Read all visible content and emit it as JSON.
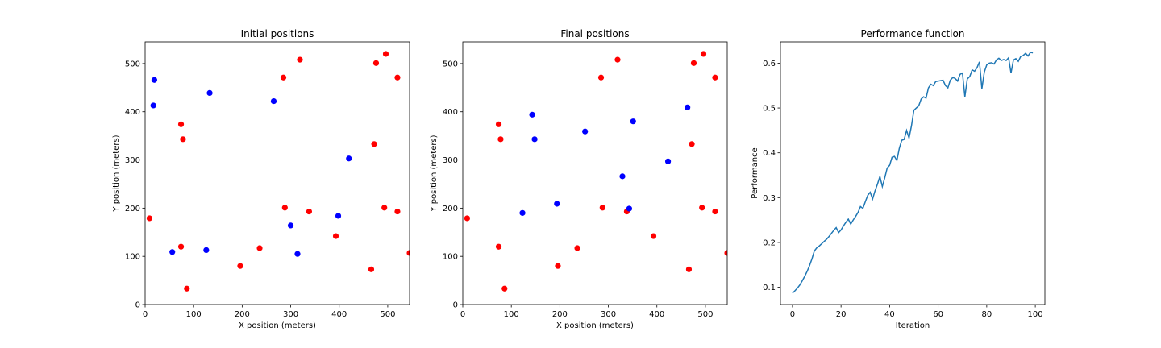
{
  "chart_data": [
    {
      "type": "scatter",
      "title": "Initial positions",
      "xlabel": "X position (meters)",
      "ylabel": "Y position (meters)",
      "xlim": [
        0,
        545
      ],
      "ylim": [
        0,
        545
      ],
      "xticks": [
        0,
        100,
        200,
        300,
        400,
        500
      ],
      "yticks": [
        0,
        100,
        200,
        300,
        400,
        500
      ],
      "grid": false,
      "series": [
        {
          "color": "#ff0000",
          "points": [
            [
              9,
              179
            ],
            [
              74,
              374
            ],
            [
              78,
              343
            ],
            [
              74,
              120
            ],
            [
              86,
              33
            ],
            [
              196,
              80
            ],
            [
              236,
              117
            ],
            [
              285,
              471
            ],
            [
              288,
              201
            ],
            [
              319,
              508
            ],
            [
              338,
              193
            ],
            [
              393,
              142
            ],
            [
              466,
              73
            ],
            [
              472,
              333
            ],
            [
              476,
              501
            ],
            [
              493,
              201
            ],
            [
              496,
              520
            ],
            [
              520,
              471
            ],
            [
              520,
              193
            ],
            [
              545,
              107
            ]
          ]
        },
        {
          "color": "#0000ff",
          "points": [
            [
              19,
              466
            ],
            [
              17,
              413
            ],
            [
              133,
              439
            ],
            [
              265,
              422
            ],
            [
              420,
              303
            ],
            [
              300,
              164
            ],
            [
              398,
              184
            ],
            [
              56,
              109
            ],
            [
              126,
              113
            ],
            [
              314,
              105
            ]
          ]
        }
      ]
    },
    {
      "type": "scatter",
      "title": "Final positions",
      "xlabel": "X position (meters)",
      "ylabel": "Y position (meters)",
      "xlim": [
        0,
        545
      ],
      "ylim": [
        0,
        545
      ],
      "xticks": [
        0,
        100,
        200,
        300,
        400,
        500
      ],
      "yticks": [
        0,
        100,
        200,
        300,
        400,
        500
      ],
      "grid": false,
      "series": [
        {
          "color": "#ff0000",
          "points": [
            [
              9,
              179
            ],
            [
              74,
              374
            ],
            [
              78,
              343
            ],
            [
              74,
              120
            ],
            [
              86,
              33
            ],
            [
              196,
              80
            ],
            [
              236,
              117
            ],
            [
              285,
              471
            ],
            [
              288,
              201
            ],
            [
              319,
              508
            ],
            [
              338,
              193
            ],
            [
              393,
              142
            ],
            [
              466,
              73
            ],
            [
              472,
              333
            ],
            [
              476,
              501
            ],
            [
              493,
              201
            ],
            [
              496,
              520
            ],
            [
              520,
              471
            ],
            [
              520,
              193
            ],
            [
              545,
              107
            ]
          ]
        },
        {
          "color": "#0000ff",
          "points": [
            [
              143,
              394
            ],
            [
              148,
              343
            ],
            [
              252,
              359
            ],
            [
              351,
              380
            ],
            [
              463,
              409
            ],
            [
              423,
              297
            ],
            [
              329,
              266
            ],
            [
              343,
              199
            ],
            [
              194,
              209
            ],
            [
              123,
              190
            ]
          ]
        }
      ]
    },
    {
      "type": "line",
      "title": "Performance function",
      "xlabel": "Iteration",
      "ylabel": "Performance",
      "xlim": [
        -4.95,
        103.95
      ],
      "ylim": [
        0.0615,
        0.6475
      ],
      "xticks": [
        0,
        20,
        40,
        60,
        80,
        100
      ],
      "yticks": [
        0.1,
        0.2,
        0.3,
        0.4,
        0.5,
        0.6
      ],
      "grid": false,
      "series": [
        {
          "color": "#1f77b4",
          "x": [
            0,
            1,
            2,
            3,
            4,
            5,
            6,
            7,
            8,
            9,
            10,
            11,
            12,
            13,
            14,
            15,
            16,
            17,
            18,
            19,
            20,
            21,
            22,
            23,
            24,
            25,
            26,
            27,
            28,
            29,
            30,
            31,
            32,
            33,
            34,
            35,
            36,
            37,
            38,
            39,
            40,
            41,
            42,
            43,
            44,
            45,
            46,
            47,
            48,
            49,
            50,
            51,
            52,
            53,
            54,
            55,
            56,
            57,
            58,
            59,
            60,
            61,
            62,
            63,
            64,
            65,
            66,
            67,
            68,
            69,
            70,
            71,
            72,
            73,
            74,
            75,
            76,
            77,
            78,
            79,
            80,
            81,
            82,
            83,
            84,
            85,
            86,
            87,
            88,
            89,
            90,
            91,
            92,
            93,
            94,
            95,
            96,
            97,
            98,
            99
          ],
          "y": [
            0.087,
            0.092,
            0.098,
            0.105,
            0.114,
            0.124,
            0.135,
            0.148,
            0.163,
            0.181,
            0.188,
            0.192,
            0.197,
            0.202,
            0.207,
            0.213,
            0.22,
            0.227,
            0.233,
            0.222,
            0.228,
            0.237,
            0.245,
            0.252,
            0.241,
            0.25,
            0.258,
            0.267,
            0.28,
            0.276,
            0.291,
            0.305,
            0.312,
            0.297,
            0.315,
            0.33,
            0.347,
            0.325,
            0.344,
            0.366,
            0.372,
            0.39,
            0.392,
            0.383,
            0.41,
            0.428,
            0.43,
            0.45,
            0.433,
            0.46,
            0.495,
            0.5,
            0.505,
            0.52,
            0.525,
            0.522,
            0.545,
            0.553,
            0.55,
            0.559,
            0.56,
            0.561,
            0.562,
            0.55,
            0.545,
            0.562,
            0.568,
            0.566,
            0.56,
            0.575,
            0.578,
            0.525,
            0.565,
            0.57,
            0.585,
            0.582,
            0.59,
            0.603,
            0.543,
            0.58,
            0.596,
            0.6,
            0.601,
            0.598,
            0.607,
            0.611,
            0.606,
            0.608,
            0.606,
            0.612,
            0.578,
            0.607,
            0.61,
            0.604,
            0.615,
            0.617,
            0.622,
            0.616,
            0.624,
            0.623
          ]
        }
      ]
    }
  ]
}
